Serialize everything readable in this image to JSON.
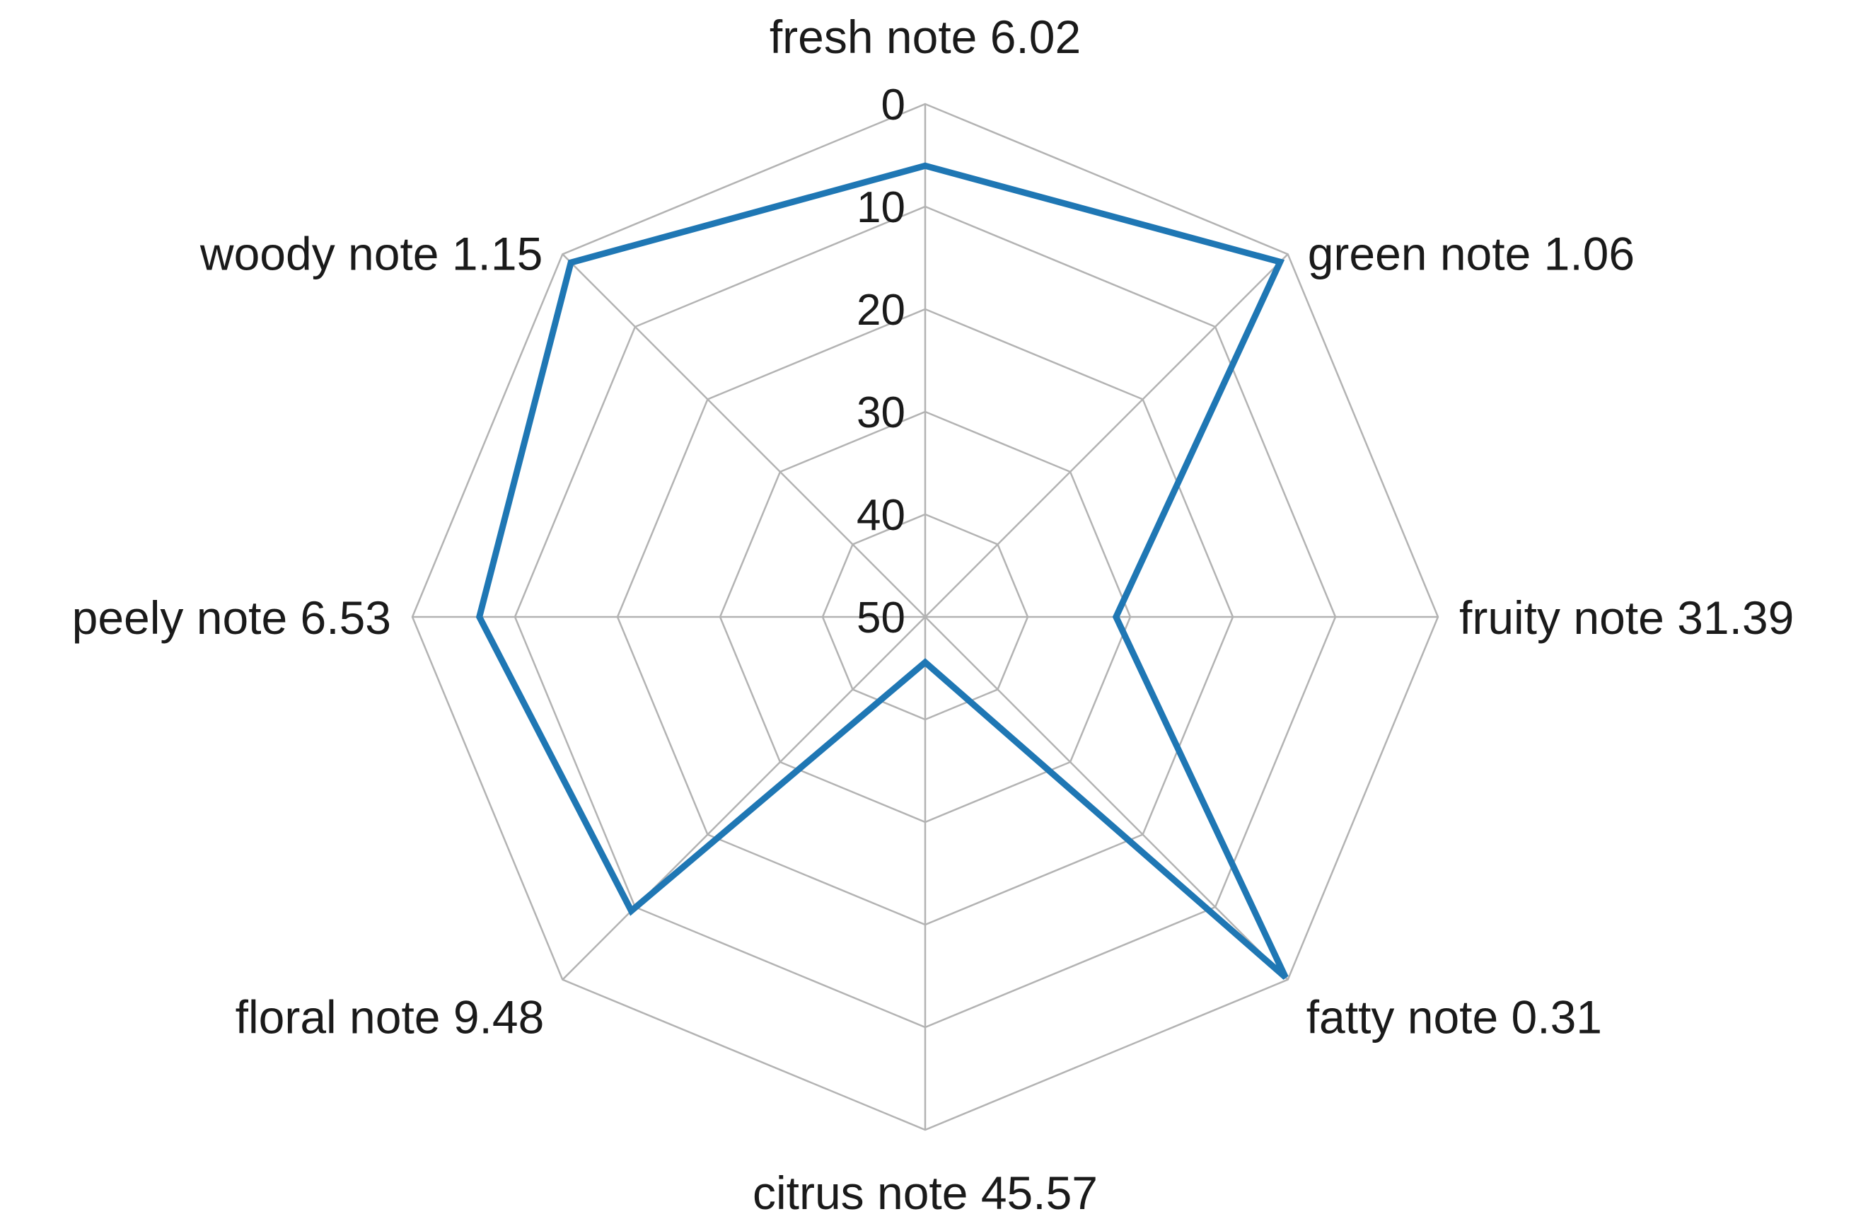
{
  "chart_data": {
    "type": "radar",
    "title": "",
    "axes": [
      "fresh note 6.02",
      "green note 1.06",
      "fruity note 31.39",
      "fatty note 0.31",
      "citrus note 45.57",
      "floral note 9.48",
      "peely note 6.53",
      "woody note 1.15"
    ],
    "series": [
      {
        "values": [
          6.02,
          1.06,
          31.39,
          0.31,
          45.57,
          9.48,
          6.53,
          1.15
        ],
        "color": "#1f77b4"
      }
    ],
    "scale": {
      "reversed": true,
      "min": 0,
      "max": 50,
      "ticks": [
        "0",
        "10",
        "20",
        "30",
        "40",
        "50"
      ]
    },
    "grid": true,
    "legend": "none",
    "colors": {
      "grid": "#b3b3b3",
      "series": "#1f77b4",
      "text": "#1a1a1a"
    }
  }
}
